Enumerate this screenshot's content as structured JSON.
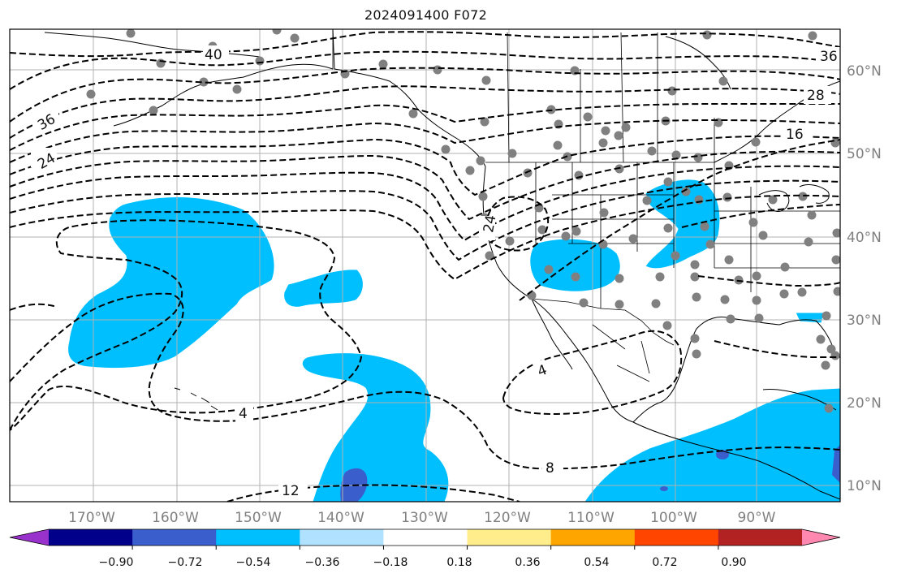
{
  "title": "2024091400 F072",
  "map": {
    "lon_labels": [
      "170°W",
      "160°W",
      "150°W",
      "140°W",
      "130°W",
      "120°W",
      "110°W",
      "100°W",
      "90°W"
    ],
    "lat_labels": [
      "60°N",
      "50°N",
      "40°N",
      "30°N",
      "20°N",
      "10°N"
    ],
    "contour_labels": [
      "40",
      "36",
      "24",
      "36",
      "28",
      "16",
      "24",
      "4",
      "4",
      "8",
      "12"
    ],
    "gridlines": true,
    "contour_style": "black dashed"
  },
  "colorbar": {
    "ticks": [
      "−0.90",
      "−0.72",
      "−0.54",
      "−0.36",
      "−0.18",
      "0.18",
      "0.36",
      "0.54",
      "0.72",
      "0.90"
    ],
    "colors": [
      "#9932cc",
      "#00008b",
      "#3a5fcd",
      "#00bfff",
      "#b0e2ff",
      "#ffffff",
      "#ffec8b",
      "#ffa500",
      "#ff4500",
      "#b22222",
      "#ff88b0"
    ],
    "extend": "both"
  }
}
